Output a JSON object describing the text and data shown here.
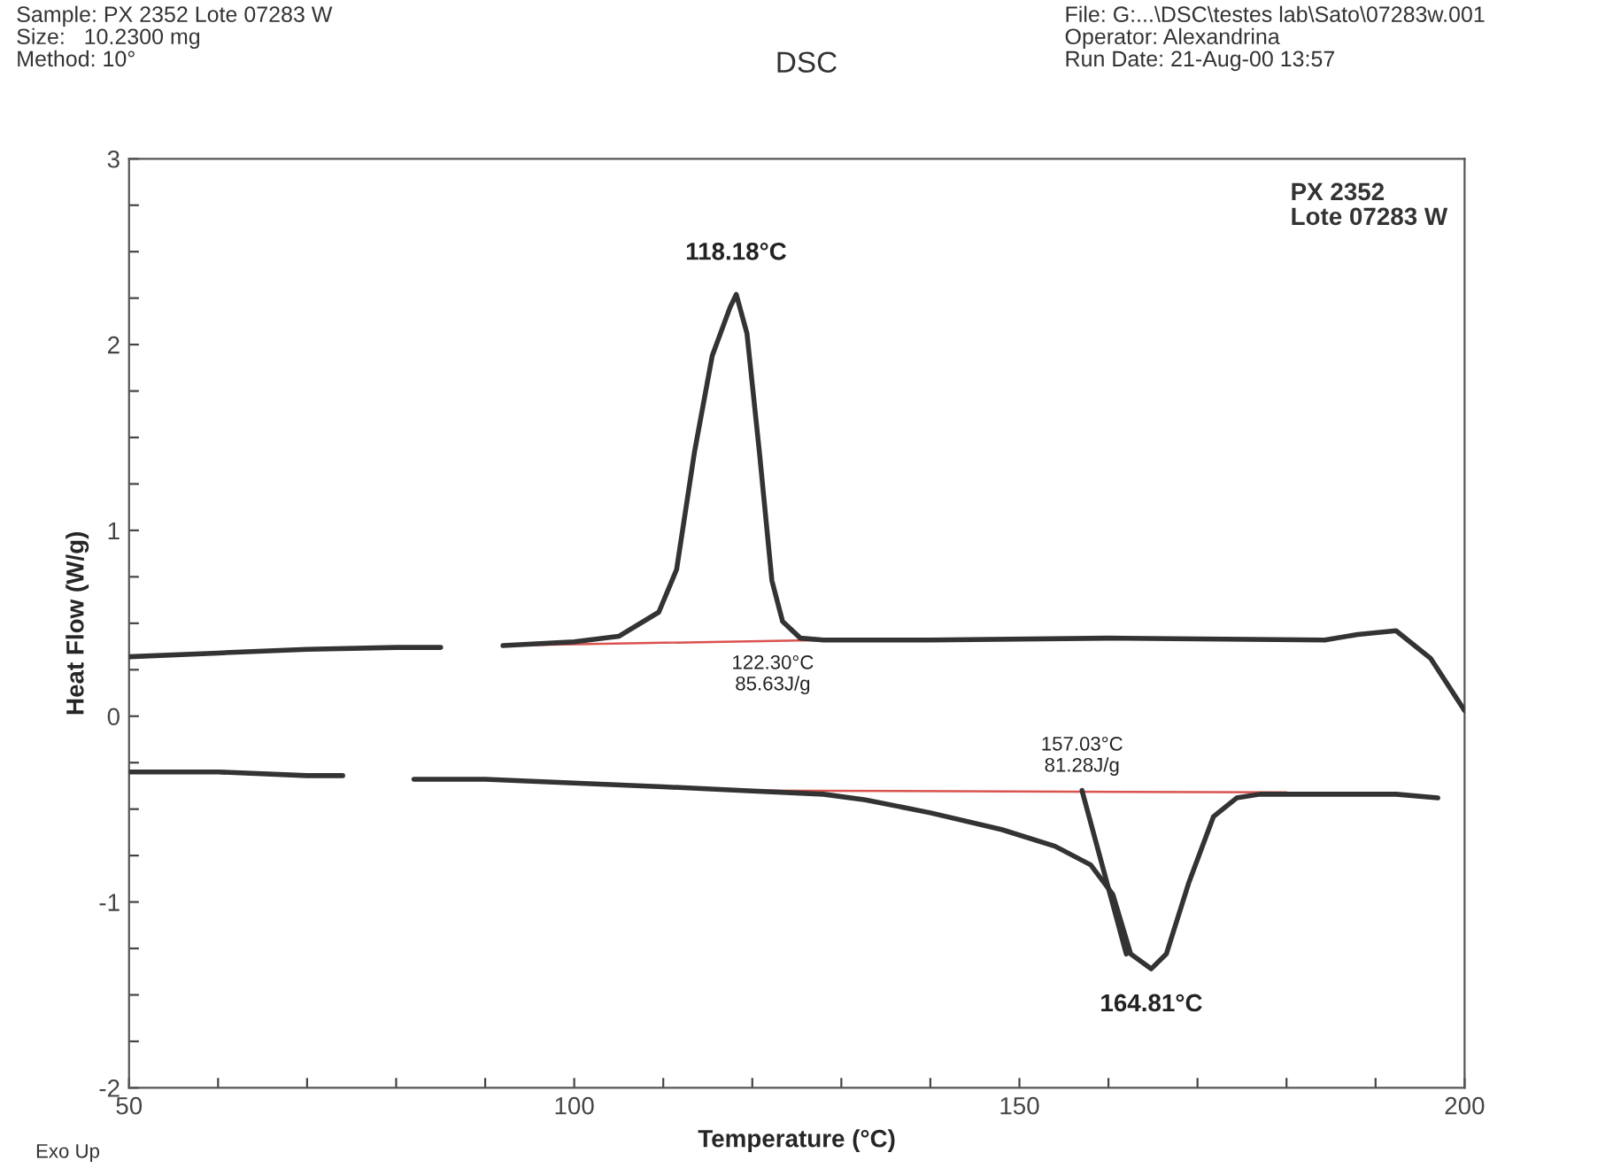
{
  "chart_data": {
    "type": "line",
    "title": "DSC",
    "xlabel": "Temperature (°C)",
    "ylabel": "Heat Flow (W/g)",
    "xlim": [
      50,
      200
    ],
    "ylim": [
      -2,
      3
    ],
    "xticks": [
      50,
      {
        "value": 60,
        "label": null
      },
      {
        "value": 70,
        "label": null
      },
      {
        "value": 80,
        "label": null
      },
      {
        "value": 90,
        "label": null
      },
      100,
      {
        "value": 110,
        "label": null
      },
      {
        "value": 120,
        "label": null
      },
      {
        "value": 130,
        "label": null
      },
      {
        "value": 140,
        "label": null
      },
      150,
      {
        "value": 160,
        "label": null
      },
      {
        "value": 170,
        "label": null
      },
      {
        "value": 180,
        "label": null
      },
      {
        "value": 190,
        "label": null
      },
      200
    ],
    "yticks": [
      -2,
      {
        "value": -1.75,
        "label": null
      },
      {
        "value": -1.5,
        "label": null
      },
      {
        "value": -1.25,
        "label": null
      },
      -1,
      {
        "value": -0.75,
        "label": null
      },
      {
        "value": -0.5,
        "label": null
      },
      {
        "value": -0.25,
        "label": null
      },
      0,
      {
        "value": 0.25,
        "label": null
      },
      {
        "value": 0.5,
        "label": null
      },
      {
        "value": 0.75,
        "label": null
      },
      1,
      {
        "value": 1.25,
        "label": null
      },
      {
        "value": 1.5,
        "label": null
      },
      {
        "value": 1.75,
        "label": null
      },
      2,
      {
        "value": 2.25,
        "label": null
      },
      {
        "value": 2.5,
        "label": null
      },
      {
        "value": 2.75,
        "label": null
      },
      3
    ],
    "grid": false,
    "legend": false,
    "marker": "none",
    "line_style": "solid",
    "series": [
      {
        "color": "#333333",
        "x": [
          50,
          60,
          70,
          80,
          85,
          88,
          92,
          100,
          105,
          109.5,
          111.5,
          113.5,
          115.5,
          117.5,
          118.2,
          119.4,
          120.8,
          122.2,
          123.4,
          125.4,
          128,
          140,
          160,
          184.3,
          188,
          192.3,
          196.2,
          200
        ],
        "values": [
          0.32,
          0.34,
          0.36,
          0.37,
          0.37,
          null,
          0.38,
          0.4,
          0.43,
          0.56,
          0.79,
          1.42,
          1.94,
          2.2,
          2.27,
          2.06,
          1.42,
          0.73,
          0.51,
          0.42,
          0.41,
          0.41,
          0.42,
          0.41,
          0.44,
          0.46,
          0.31,
          0.03
        ]
      },
      {
        "color": "#333333",
        "x": [
          50,
          60,
          70,
          74,
          78,
          82,
          90,
          100,
          110,
          119,
          128,
          132.7,
          140,
          148,
          154,
          158,
          160.5,
          162.5,
          164.8,
          166.5,
          169,
          171.8,
          174.4,
          177,
          185,
          192.3,
          197
        ],
        "values": [
          -0.3,
          -0.3,
          -0.32,
          -0.32,
          null,
          -0.34,
          -0.34,
          -0.36,
          -0.38,
          -0.4,
          -0.42,
          -0.45,
          -0.52,
          -0.61,
          -0.7,
          -0.8,
          -0.96,
          -1.28,
          -1.36,
          -1.28,
          -0.9,
          -0.54,
          -0.44,
          -0.42,
          -0.42,
          -0.42,
          -0.44
        ]
      },
      {
        "color": "#333333",
        "x": [
          157.03,
          162
        ],
        "values": [
          -0.4,
          -1.28
        ]
      },
      {
        "color": "#d9534f",
        "x": [
          92,
          128
        ],
        "values": [
          0.38,
          0.41
        ]
      },
      {
        "color": "#d9534f",
        "x": [
          119,
          180
        ],
        "values": [
          -0.4,
          -0.41
        ]
      }
    ],
    "annotations": [
      "Sample: PX 2352 Lote 07283 W\nSize:   10.2300 mg\nMethod: 10°",
      "File: G:...\\DSC\\testes lab\\Sato\\07283w.001\nOperator: Alexandrina\nRun Date: 21-Aug-00 13:57",
      "PX 2352\nLote 07283 W",
      "Exo Up",
      {
        "text": "118.18°C",
        "x": 118.18,
        "y": 2.27
      },
      {
        "text": "122.30°C\n85.63J/g",
        "x": 122.3,
        "y": 0.41
      },
      {
        "text": "157.03°C\n81.28J/g",
        "x": 157.03,
        "y": -0.4
      },
      {
        "text": "164.81°C",
        "x": 164.81,
        "y": -1.36
      }
    ]
  }
}
